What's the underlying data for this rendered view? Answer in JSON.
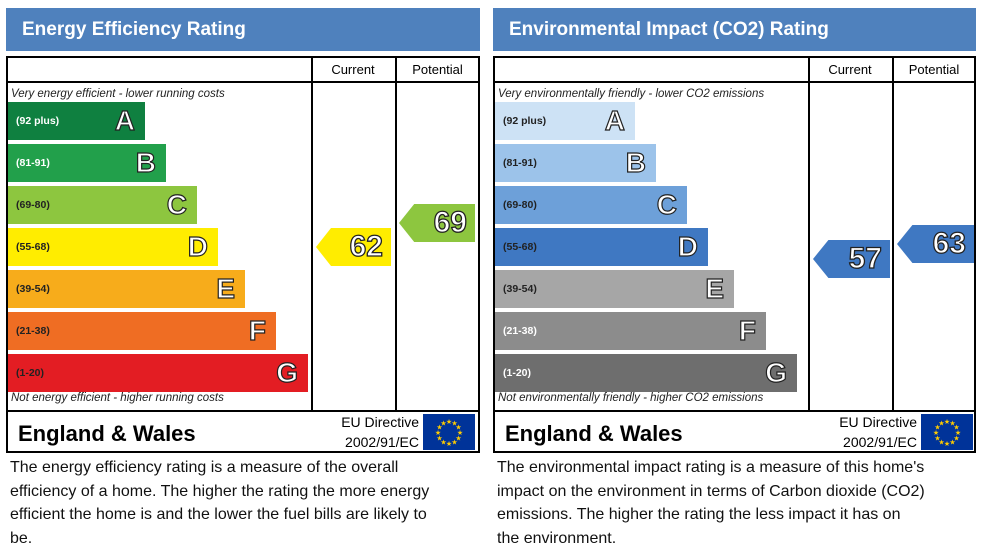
{
  "panels": [
    {
      "title": "Energy Efficiency Rating",
      "col_current": "Current",
      "col_potential": "Potential",
      "top_note": "Very energy efficient - lower running costs",
      "bottom_note": "Not energy efficient - higher running costs",
      "region": "England & Wales",
      "eu_line1": "EU Directive",
      "eu_line2": "2002/91/EC",
      "description": "The energy efficiency rating is a measure of the overall efficiency of a home. The higher the rating the more energy efficient the home is and the lower the fuel bills are likely to be.",
      "bands": [
        {
          "range": "(92 plus)",
          "letter": "A",
          "color": "#0f8040",
          "text": "#fff"
        },
        {
          "range": "(81-91)",
          "letter": "B",
          "color": "#22a04b",
          "text": "#fff"
        },
        {
          "range": "(69-80)",
          "letter": "C",
          "color": "#8dc63f",
          "text": "#222"
        },
        {
          "range": "(55-68)",
          "letter": "D",
          "color": "#ffed00",
          "text": "#222"
        },
        {
          "range": "(39-54)",
          "letter": "E",
          "color": "#f7ac1b",
          "text": "#222"
        },
        {
          "range": "(21-38)",
          "letter": "F",
          "color": "#ef6d23",
          "text": "#222"
        },
        {
          "range": "(1-20)",
          "letter": "G",
          "color": "#e31d23",
          "text": "#222"
        }
      ],
      "current": {
        "value": "62",
        "color": "#ffed00"
      },
      "potential": {
        "value": "69",
        "color": "#8dc63f"
      }
    },
    {
      "title": "Environmental Impact (CO2) Rating",
      "col_current": "Current",
      "col_potential": "Potential",
      "top_note": "Very environmentally friendly - lower CO2 emissions",
      "bottom_note": "Not environmentally friendly - higher CO2 emissions",
      "region": "England & Wales",
      "eu_line1": "EU Directive",
      "eu_line2": "2002/91/EC",
      "description": "The environmental impact rating is a measure of this home's impact on the environment in terms of Carbon dioxide (CO2) emissions. The higher the rating the less impact it has on the environment.",
      "bands": [
        {
          "range": "(92 plus)",
          "letter": "A",
          "color": "#cde2f5",
          "text": "#222"
        },
        {
          "range": "(81-91)",
          "letter": "B",
          "color": "#9cc3ea",
          "text": "#222"
        },
        {
          "range": "(69-80)",
          "letter": "C",
          "color": "#6da0d9",
          "text": "#222"
        },
        {
          "range": "(55-68)",
          "letter": "D",
          "color": "#3f78c2",
          "text": "#222"
        },
        {
          "range": "(39-54)",
          "letter": "E",
          "color": "#a6a6a6",
          "text": "#222"
        },
        {
          "range": "(21-38)",
          "letter": "F",
          "color": "#8c8c8c",
          "text": "#fff"
        },
        {
          "range": "(1-20)",
          "letter": "G",
          "color": "#6e6e6e",
          "text": "#fff"
        }
      ],
      "current": {
        "value": "57",
        "color": "#3f78c2"
      },
      "potential": {
        "value": "63",
        "color": "#3f78c2"
      }
    }
  ]
}
